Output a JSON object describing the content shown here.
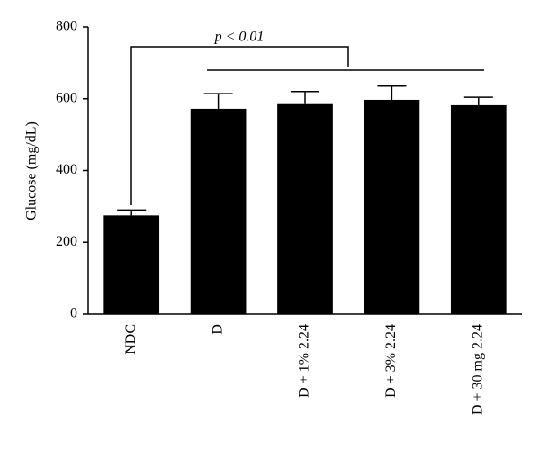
{
  "chart_data": {
    "type": "bar",
    "y_label": "Glucose (mg/dL)",
    "annotation": "p < 0.01",
    "categories": [
      "NDC",
      "D",
      "D + 1% 2.24",
      "D + 3% 2.24",
      "D + 30 mg 2.24"
    ],
    "values": [
      275,
      572,
      585,
      597,
      582
    ],
    "errors": [
      15,
      42,
      35,
      38,
      22
    ],
    "color": "#000000",
    "ylim": [
      0,
      800
    ],
    "yticks": [
      0,
      200,
      400,
      600,
      800
    ],
    "grid": false
  }
}
